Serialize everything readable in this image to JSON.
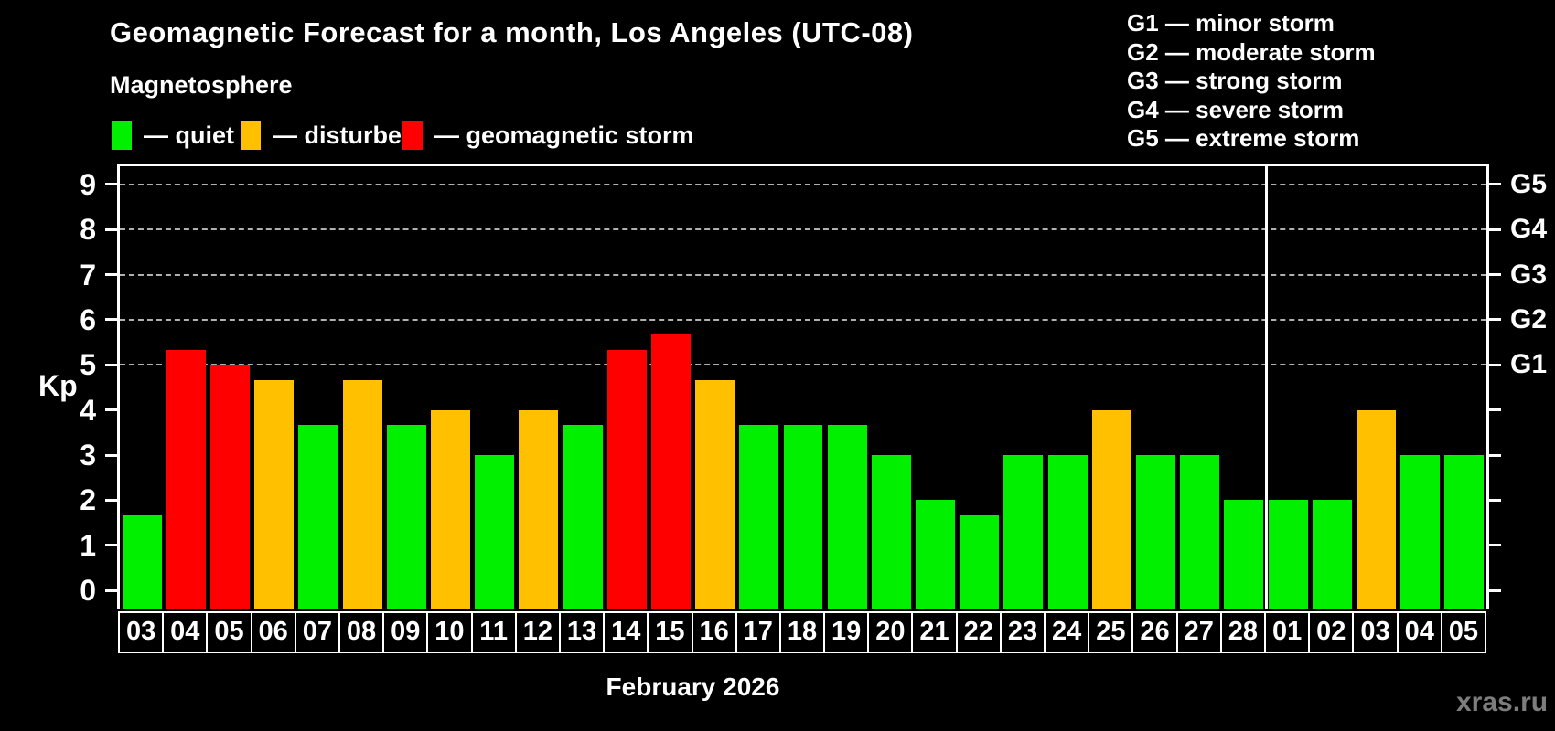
{
  "title": "Geomagnetic Forecast for a month, Los Angeles (UTC-08)",
  "legend": {
    "heading": "Magnetosphere",
    "items": [
      {
        "key": "quiet",
        "label": "— quiet",
        "color": "#00f000"
      },
      {
        "key": "disturbed",
        "label": "— disturbed",
        "color": "#ffc000"
      },
      {
        "key": "storm",
        "label": "— geomagnetic storm",
        "color": "#ff0000"
      }
    ]
  },
  "g_legend": [
    "G1 — minor storm",
    "G2 — moderate storm",
    "G3 — strong storm",
    "G4 — severe storm",
    "G5 — extreme storm"
  ],
  "axes": {
    "y_label": "Kp",
    "y_ticks": [
      0,
      1,
      2,
      3,
      4,
      5,
      6,
      7,
      8,
      9
    ],
    "gridlines_at": [
      5,
      6,
      7,
      8,
      9
    ],
    "right_axis": [
      {
        "kp": 5,
        "label": "G1"
      },
      {
        "kp": 6,
        "label": "G2"
      },
      {
        "kp": 7,
        "label": "G3"
      },
      {
        "kp": 8,
        "label": "G4"
      },
      {
        "kp": 9,
        "label": "G5"
      }
    ],
    "x_label": "February 2026"
  },
  "watermark": "xras.ru",
  "chart_data": {
    "type": "bar",
    "title": "Geomagnetic Forecast for a month, Los Angeles (UTC-08)",
    "ylabel": "Kp",
    "ylim": [
      0,
      9
    ],
    "grid": "dashed horizontal lines at Kp 5-9 (G1-G5)",
    "legend_position": "top-left and top-right",
    "categories": [
      "03",
      "04",
      "05",
      "06",
      "07",
      "08",
      "09",
      "10",
      "11",
      "12",
      "13",
      "14",
      "15",
      "16",
      "17",
      "18",
      "19",
      "20",
      "21",
      "22",
      "23",
      "24",
      "25",
      "26",
      "27",
      "28",
      "01",
      "02",
      "03",
      "04",
      "05"
    ],
    "values": [
      1.67,
      5.33,
      5.0,
      4.67,
      3.67,
      4.67,
      3.67,
      4.0,
      3.0,
      4.0,
      3.67,
      5.33,
      5.67,
      4.67,
      3.67,
      3.67,
      3.67,
      3.0,
      2.0,
      1.67,
      3.0,
      3.0,
      4.0,
      3.0,
      3.0,
      2.0,
      2.0,
      2.0,
      4.0,
      3.0,
      3.0
    ],
    "statuses": [
      "quiet",
      "storm",
      "storm",
      "disturbed",
      "quiet",
      "disturbed",
      "quiet",
      "disturbed",
      "quiet",
      "disturbed",
      "quiet",
      "storm",
      "storm",
      "disturbed",
      "quiet",
      "quiet",
      "quiet",
      "quiet",
      "quiet",
      "quiet",
      "quiet",
      "quiet",
      "disturbed",
      "quiet",
      "quiet",
      "quiet",
      "quiet",
      "quiet",
      "disturbed",
      "quiet",
      "quiet"
    ],
    "colors": {
      "quiet": "#00f000",
      "disturbed": "#ffc000",
      "storm": "#ff0000"
    },
    "month_boundary_index": 26,
    "x_month_label": "February 2026"
  }
}
